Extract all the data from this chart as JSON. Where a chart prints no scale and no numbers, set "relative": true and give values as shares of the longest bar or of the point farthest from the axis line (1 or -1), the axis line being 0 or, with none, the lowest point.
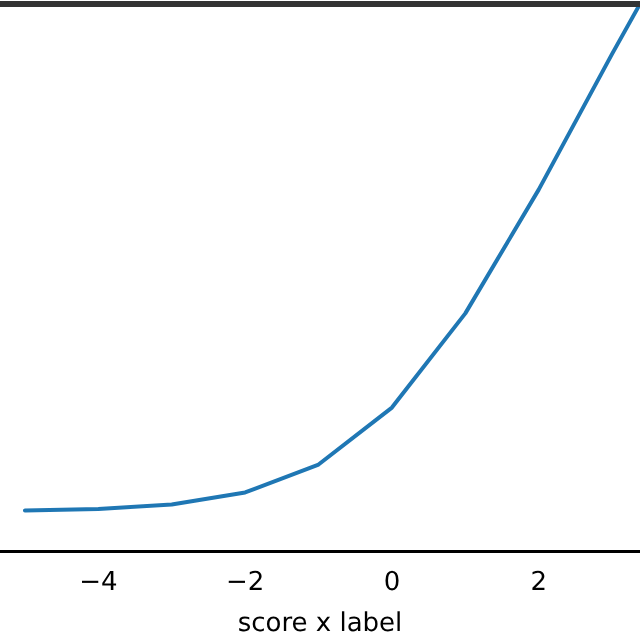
{
  "chart_data": {
    "type": "line",
    "xlabel": "score x label",
    "relative": true,
    "x": [
      -5,
      -4,
      -3,
      -2,
      -1,
      0,
      1,
      2,
      3,
      3.38
    ],
    "series": [
      {
        "color": "#1f77b4",
        "values": [
          0.075,
          0.078,
          0.086,
          0.108,
          0.159,
          0.263,
          0.435,
          0.661,
          0.909,
          1
        ]
      }
    ],
    "xlim": [
      -5.34,
      3.38
    ],
    "xticks": [
      -4,
      -2,
      0,
      2
    ],
    "grid": false,
    "legend": false,
    "marker": "none",
    "line_style": "solid"
  }
}
